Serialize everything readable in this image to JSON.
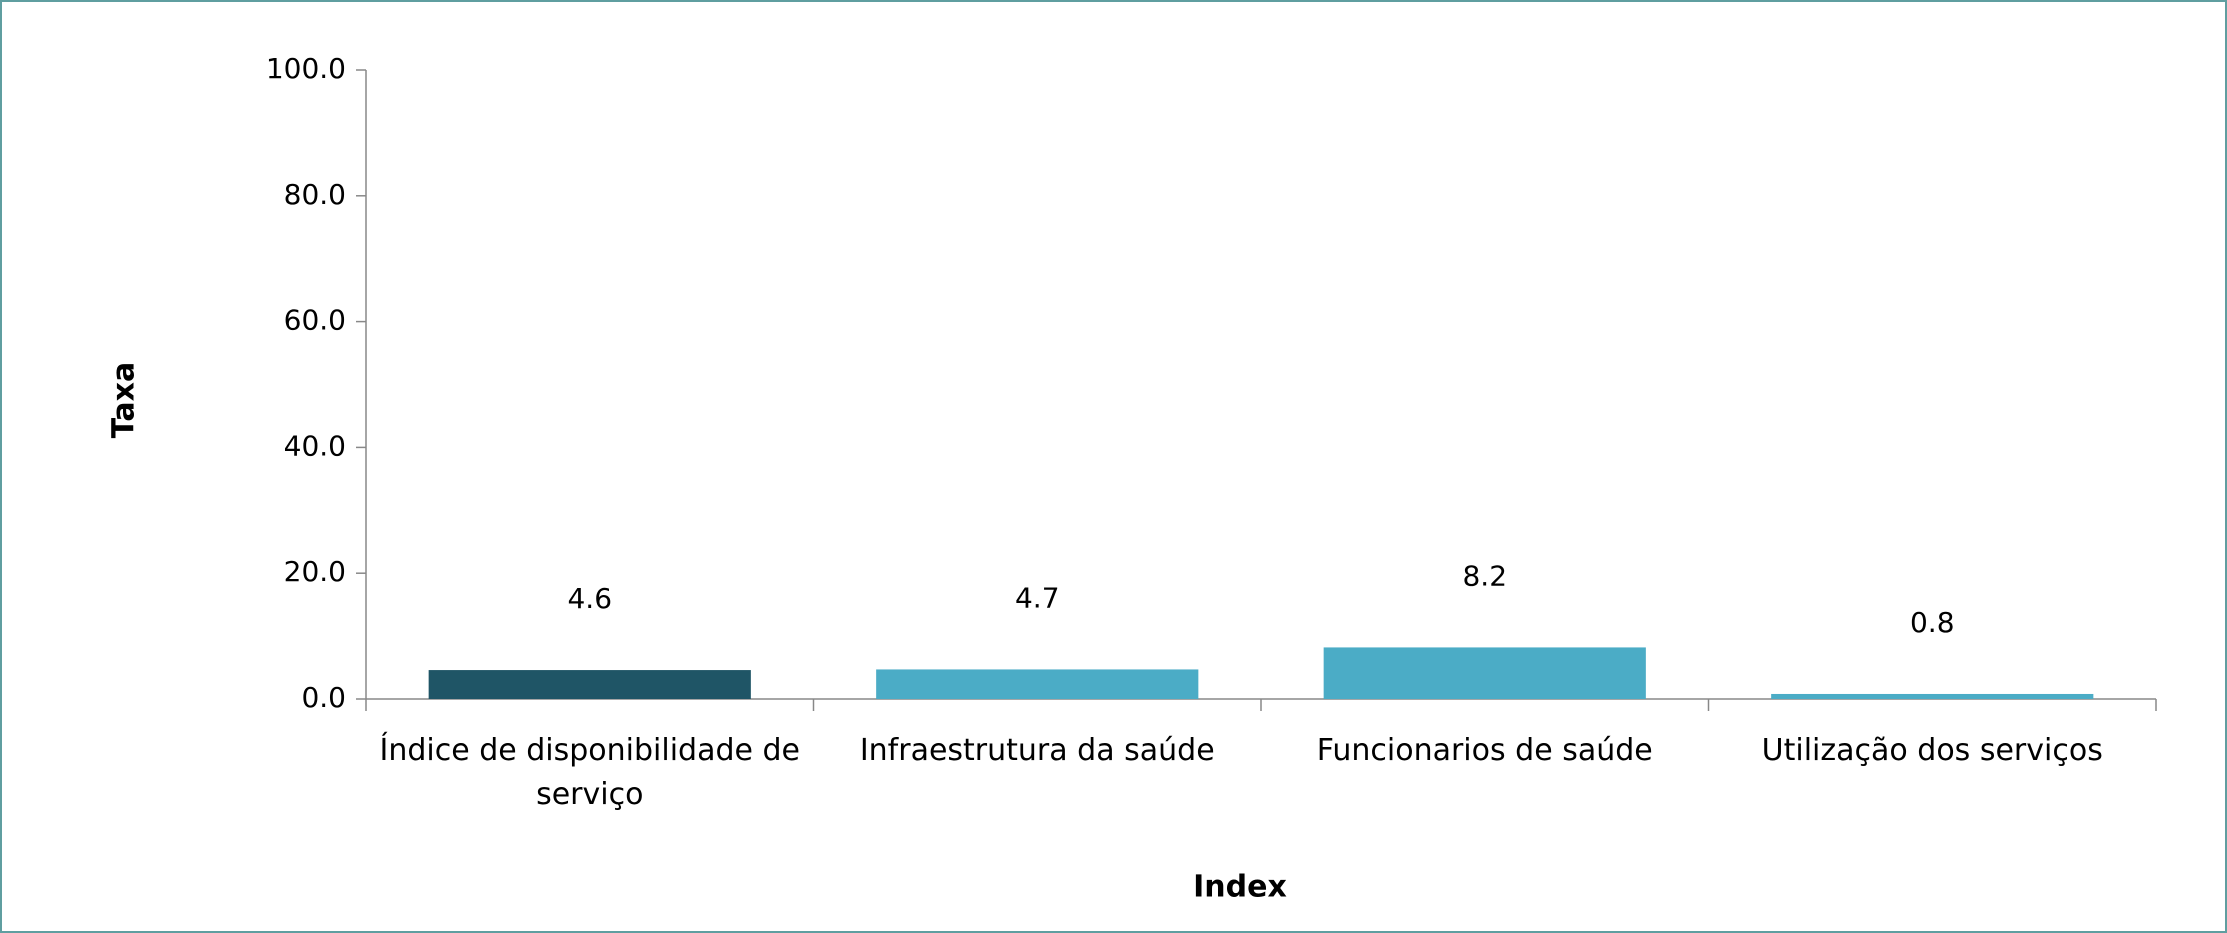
{
  "chart_data": {
    "type": "bar",
    "categories": [
      "Índice de disponibilidade de serviço",
      "Infraestrutura da saúde",
      "Funcionarios de saúde",
      "Utilização dos serviços"
    ],
    "values": [
      4.6,
      4.7,
      8.2,
      0.8
    ],
    "colors": [
      "#1f5566",
      "#4bacc6",
      "#4bacc6",
      "#4bacc6"
    ],
    "xlabel": "Index",
    "ylabel": "Taxa",
    "ylim": [
      0,
      100
    ],
    "yticks": [
      {
        "value": 0,
        "label": "0.0"
      },
      {
        "value": 20,
        "label": "20.0"
      },
      {
        "value": 40,
        "label": "40.0"
      },
      {
        "value": 60,
        "label": "60.0"
      },
      {
        "value": 80,
        "label": "80.0"
      },
      {
        "value": 100,
        "label": "100.0"
      }
    ],
    "grid": false
  }
}
